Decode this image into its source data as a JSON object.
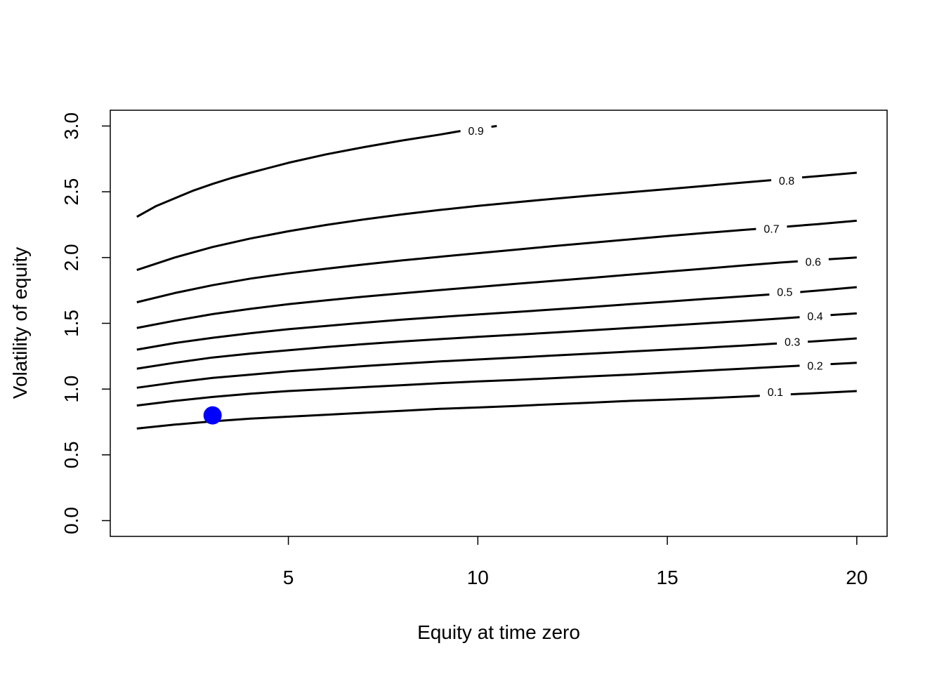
{
  "chart_data": {
    "type": "contour",
    "xlabel": "Equity at time zero",
    "ylabel": "Volatility of equity",
    "xlim": [
      0.3,
      20.8
    ],
    "ylim": [
      -0.12,
      3.12
    ],
    "x_ticks": [
      {
        "value": 5,
        "label": "5"
      },
      {
        "value": 10,
        "label": "10"
      },
      {
        "value": 15,
        "label": "15"
      },
      {
        "value": 20,
        "label": "20"
      }
    ],
    "y_ticks": [
      {
        "value": 0.0,
        "label": "0.0"
      },
      {
        "value": 0.5,
        "label": "0.5"
      },
      {
        "value": 1.0,
        "label": "1.0"
      },
      {
        "value": 1.5,
        "label": "1.5"
      },
      {
        "value": 2.0,
        "label": "2.0"
      },
      {
        "value": 2.5,
        "label": "2.5"
      },
      {
        "value": 3.0,
        "label": "3.0"
      }
    ],
    "contours": [
      {
        "level": "0.1",
        "label_pos": [
          17.85,
          0.98
        ],
        "points": [
          [
            1,
            0.7
          ],
          [
            2,
            0.73
          ],
          [
            3,
            0.755
          ],
          [
            4,
            0.775
          ],
          [
            5,
            0.79
          ],
          [
            6,
            0.805
          ],
          [
            7,
            0.82
          ],
          [
            8,
            0.835
          ],
          [
            9,
            0.85
          ],
          [
            10,
            0.86
          ],
          [
            11,
            0.872
          ],
          [
            12,
            0.885
          ],
          [
            13,
            0.897
          ],
          [
            14,
            0.91
          ],
          [
            15,
            0.92
          ],
          [
            16,
            0.93
          ],
          [
            17,
            0.943
          ],
          [
            18,
            0.957
          ],
          [
            19,
            0.97
          ],
          [
            20,
            0.985
          ]
        ]
      },
      {
        "level": "0.2",
        "label_pos": [
          18.9,
          1.18
        ],
        "points": [
          [
            1,
            0.875
          ],
          [
            2,
            0.91
          ],
          [
            3,
            0.94
          ],
          [
            4,
            0.965
          ],
          [
            5,
            0.985
          ],
          [
            6,
            1.0
          ],
          [
            7,
            1.015
          ],
          [
            8,
            1.03
          ],
          [
            9,
            1.045
          ],
          [
            10,
            1.058
          ],
          [
            11,
            1.07
          ],
          [
            12,
            1.083
          ],
          [
            13,
            1.097
          ],
          [
            14,
            1.11
          ],
          [
            15,
            1.125
          ],
          [
            16,
            1.14
          ],
          [
            17,
            1.155
          ],
          [
            18,
            1.17
          ],
          [
            19,
            1.185
          ],
          [
            20,
            1.2
          ]
        ]
      },
      {
        "level": "0.3",
        "label_pos": [
          18.3,
          1.36
        ],
        "points": [
          [
            1,
            1.01
          ],
          [
            2,
            1.05
          ],
          [
            3,
            1.085
          ],
          [
            4,
            1.11
          ],
          [
            5,
            1.135
          ],
          [
            6,
            1.155
          ],
          [
            7,
            1.175
          ],
          [
            8,
            1.193
          ],
          [
            9,
            1.21
          ],
          [
            10,
            1.225
          ],
          [
            11,
            1.24
          ],
          [
            12,
            1.255
          ],
          [
            13,
            1.27
          ],
          [
            14,
            1.285
          ],
          [
            15,
            1.3
          ],
          [
            16,
            1.315
          ],
          [
            17,
            1.33
          ],
          [
            18,
            1.348
          ],
          [
            19,
            1.365
          ],
          [
            20,
            1.385
          ]
        ]
      },
      {
        "level": "0.4",
        "label_pos": [
          18.9,
          1.555
        ],
        "points": [
          [
            1,
            1.155
          ],
          [
            2,
            1.2
          ],
          [
            3,
            1.24
          ],
          [
            4,
            1.27
          ],
          [
            5,
            1.295
          ],
          [
            6,
            1.32
          ],
          [
            7,
            1.342
          ],
          [
            8,
            1.362
          ],
          [
            9,
            1.38
          ],
          [
            10,
            1.397
          ],
          [
            11,
            1.413
          ],
          [
            12,
            1.43
          ],
          [
            13,
            1.447
          ],
          [
            14,
            1.465
          ],
          [
            15,
            1.482
          ],
          [
            16,
            1.5
          ],
          [
            17,
            1.518
          ],
          [
            18,
            1.537
          ],
          [
            19,
            1.557
          ],
          [
            20,
            1.575
          ]
        ]
      },
      {
        "level": "0.5",
        "label_pos": [
          18.1,
          1.74
        ],
        "points": [
          [
            1,
            1.3
          ],
          [
            2,
            1.35
          ],
          [
            3,
            1.39
          ],
          [
            4,
            1.425
          ],
          [
            5,
            1.455
          ],
          [
            6,
            1.48
          ],
          [
            7,
            1.505
          ],
          [
            8,
            1.528
          ],
          [
            9,
            1.548
          ],
          [
            10,
            1.567
          ],
          [
            11,
            1.586
          ],
          [
            12,
            1.605
          ],
          [
            13,
            1.625
          ],
          [
            14,
            1.645
          ],
          [
            15,
            1.665
          ],
          [
            16,
            1.685
          ],
          [
            17,
            1.705
          ],
          [
            18,
            1.725
          ],
          [
            19,
            1.75
          ],
          [
            20,
            1.775
          ]
        ]
      },
      {
        "level": "0.6",
        "label_pos": [
          18.85,
          1.97
        ],
        "points": [
          [
            1,
            1.465
          ],
          [
            2,
            1.52
          ],
          [
            3,
            1.57
          ],
          [
            4,
            1.61
          ],
          [
            5,
            1.645
          ],
          [
            6,
            1.675
          ],
          [
            7,
            1.703
          ],
          [
            8,
            1.728
          ],
          [
            9,
            1.753
          ],
          [
            10,
            1.776
          ],
          [
            11,
            1.8
          ],
          [
            12,
            1.823
          ],
          [
            13,
            1.846
          ],
          [
            14,
            1.87
          ],
          [
            15,
            1.893
          ],
          [
            16,
            1.916
          ],
          [
            17,
            1.94
          ],
          [
            18,
            1.962
          ],
          [
            19,
            1.983
          ],
          [
            20,
            2.0
          ]
        ]
      },
      {
        "level": "0.7",
        "label_pos": [
          17.75,
          2.22
        ],
        "points": [
          [
            1,
            1.66
          ],
          [
            2,
            1.73
          ],
          [
            3,
            1.79
          ],
          [
            4,
            1.84
          ],
          [
            5,
            1.88
          ],
          [
            6,
            1.915
          ],
          [
            7,
            1.948
          ],
          [
            8,
            1.978
          ],
          [
            9,
            2.006
          ],
          [
            10,
            2.033
          ],
          [
            11,
            2.06
          ],
          [
            12,
            2.087
          ],
          [
            13,
            2.113
          ],
          [
            14,
            2.138
          ],
          [
            15,
            2.163
          ],
          [
            16,
            2.187
          ],
          [
            17,
            2.21
          ],
          [
            18,
            2.232
          ],
          [
            19,
            2.255
          ],
          [
            20,
            2.28
          ]
        ]
      },
      {
        "level": "0.8",
        "label_pos": [
          18.15,
          2.585
        ],
        "points": [
          [
            1,
            1.905
          ],
          [
            2,
            2.0
          ],
          [
            3,
            2.08
          ],
          [
            4,
            2.145
          ],
          [
            5,
            2.2
          ],
          [
            6,
            2.248
          ],
          [
            7,
            2.29
          ],
          [
            8,
            2.328
          ],
          [
            9,
            2.362
          ],
          [
            10,
            2.393
          ],
          [
            11,
            2.42
          ],
          [
            12,
            2.447
          ],
          [
            13,
            2.472
          ],
          [
            14,
            2.496
          ],
          [
            15,
            2.52
          ],
          [
            16,
            2.545
          ],
          [
            17,
            2.57
          ],
          [
            18,
            2.595
          ],
          [
            19,
            2.62
          ],
          [
            20,
            2.645
          ]
        ]
      },
      {
        "level": "0.9",
        "label_pos": [
          9.95,
          2.965
        ],
        "points": [
          [
            1,
            2.31
          ],
          [
            1.5,
            2.39
          ],
          [
            2,
            2.45
          ],
          [
            2.5,
            2.51
          ],
          [
            3,
            2.56
          ],
          [
            3.5,
            2.605
          ],
          [
            4,
            2.645
          ],
          [
            5,
            2.72
          ],
          [
            6,
            2.785
          ],
          [
            7,
            2.84
          ],
          [
            8,
            2.89
          ],
          [
            9,
            2.935
          ],
          [
            9.6,
            2.965
          ],
          [
            10.5,
            3.0
          ]
        ]
      }
    ],
    "points": [
      {
        "x": 3.0,
        "y": 0.8,
        "color": "#0000FF"
      }
    ]
  }
}
